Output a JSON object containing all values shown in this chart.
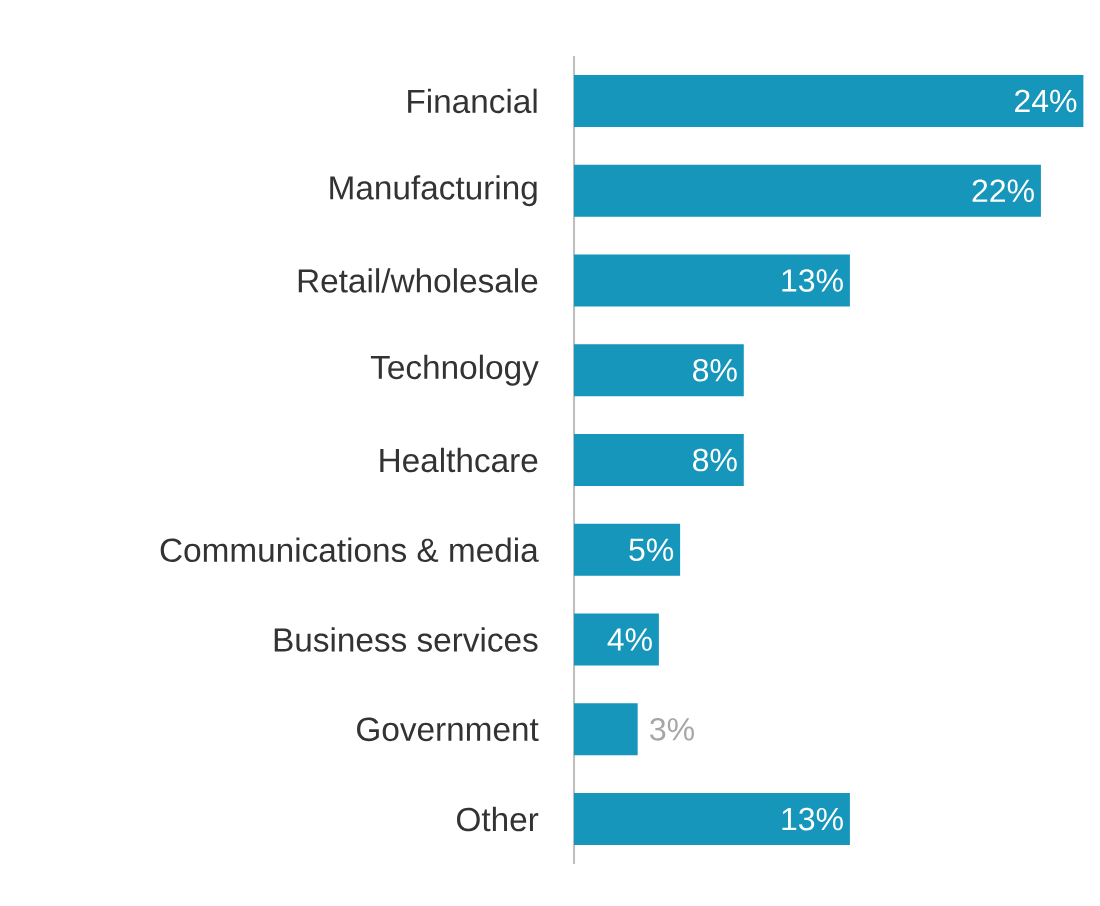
{
  "chart_data": {
    "type": "bar",
    "orientation": "horizontal",
    "categories": [
      "Financial",
      "Manufacturing",
      "Retail/wholesale",
      "Technology",
      "Healthcare",
      "Communications & media",
      "Business services",
      "Government",
      "Other"
    ],
    "values": [
      24,
      22,
      13,
      8,
      8,
      5,
      4,
      3,
      13
    ],
    "value_labels": [
      "24%",
      "22%",
      "13%",
      "8%",
      "8%",
      "5%",
      "4%",
      "3%",
      "13%"
    ],
    "color": "#1696bb",
    "tick_labels": "y",
    "grid": false
  }
}
